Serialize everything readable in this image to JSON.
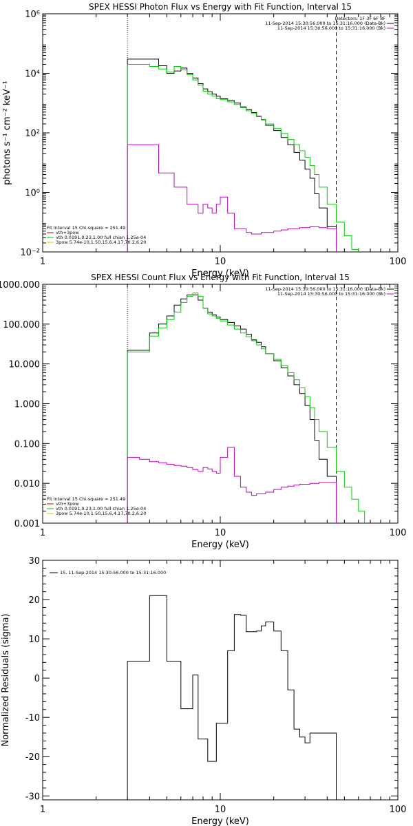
{
  "chart_data": [
    {
      "type": "line",
      "title": "SPEX HESSI Photon Flux vs Energy with Fit Function, Interval 15",
      "xlabel": "Energy (keV)",
      "ylabel": "photons s⁻¹ cm⁻² keV⁻¹",
      "xscale": "log",
      "yscale": "log",
      "xlim": [
        1,
        100
      ],
      "ylim": [
        0.01,
        1000000
      ],
      "x_ticks": [
        "1",
        "10",
        "100"
      ],
      "y_ticks": [
        {
          "value": 0.01,
          "label": "10⁻²"
        },
        {
          "value": 1,
          "label": "10⁰"
        },
        {
          "value": 100,
          "label": "10²"
        },
        {
          "value": 10000,
          "label": "10⁴"
        },
        {
          "value": 1000000,
          "label": "10⁶"
        }
      ],
      "fit_range": [
        3,
        45
      ],
      "legend_top_right": {
        "header": "Detectors: 1F 3F 6F 8F",
        "entries": [
          {
            "text": "11-Sep-2014 15:30:56.000 to 15:31:16.000 (Data-Bk)",
            "color": "#000000"
          },
          {
            "text": "11-Sep-2014 15:30:56.000 to 15:31:16.000 (Bk)",
            "color": "#c000c0"
          }
        ]
      },
      "legend_bottom_left": {
        "header": "Fit Interval 15   Chi-square = 251.49",
        "entries": [
          {
            "text": "vth+3pow",
            "color": "#c00000"
          },
          {
            "text": "vth 0.0191,0.23,1.00  full chian 1.25e-04",
            "color": "#00cc00"
          },
          {
            "text": "3pow 5.74e-10,1.50,15.6,4.17,70.2,6.20",
            "color": "#cccc00"
          }
        ]
      },
      "series": [
        {
          "color": "#000000",
          "edges": [
            3,
            3.5,
            4,
            4.5,
            5,
            5.5,
            6,
            6.5,
            7,
            7.5,
            8,
            8.5,
            9,
            9.5,
            10,
            11,
            12,
            13,
            14,
            15,
            16,
            17,
            18,
            20,
            22,
            24,
            26,
            28,
            30,
            32,
            34,
            36,
            40,
            45
          ],
          "values": [
            30000,
            30000,
            30000,
            18000,
            10000,
            12000,
            15000,
            10000,
            7000,
            4500,
            3000,
            2400,
            2000,
            1700,
            1400,
            1200,
            1000,
            750,
            600,
            480,
            360,
            280,
            180,
            120,
            70,
            40,
            22,
            12,
            6,
            3,
            0.9,
            0.3,
            0.07
          ]
        },
        {
          "color": "#00cc00",
          "edges": [
            3,
            3.5,
            4,
            4.5,
            5,
            5.5,
            6,
            6.5,
            7,
            7.5,
            8,
            8.5,
            9,
            9.5,
            10,
            11,
            12,
            13,
            14,
            15,
            16,
            17,
            18,
            20,
            22,
            24,
            26,
            28,
            30,
            32,
            34,
            36,
            40,
            45,
            50,
            55,
            60
          ],
          "values": [
            20000,
            20000,
            17000,
            14000,
            11000,
            17000,
            13000,
            9000,
            6000,
            4000,
            2500,
            2000,
            1700,
            1400,
            1300,
            1100,
            900,
            700,
            550,
            450,
            350,
            270,
            200,
            140,
            95,
            60,
            40,
            25,
            15,
            8,
            4,
            1.5,
            0.4,
            0.1,
            0.035,
            0.012
          ]
        },
        {
          "color": "#c000c0",
          "edges": [
            3,
            3.5,
            4,
            4.5,
            5,
            5.5,
            6,
            6.5,
            7,
            7.5,
            8,
            8.5,
            9,
            9.5,
            10,
            11,
            12,
            13,
            14,
            15,
            16,
            17,
            18,
            20,
            22,
            24,
            26,
            28,
            30,
            32,
            34,
            36,
            40,
            45
          ],
          "values": [
            40,
            40,
            40,
            4.5,
            4.5,
            1.5,
            1.5,
            0.4,
            0.4,
            0.2,
            0.4,
            0.3,
            0.2,
            0.4,
            0.7,
            0.2,
            0.06,
            0.06,
            0.045,
            0.04,
            0.04,
            0.045,
            0.045,
            0.05,
            0.055,
            0.06,
            0.06,
            0.065,
            0.065,
            0.07,
            0.07,
            0.065,
            0.06
          ]
        }
      ]
    },
    {
      "type": "line",
      "title": "SPEX HESSI Count Flux vs Energy with Fit Function, Interval 15",
      "xlabel": "Energy (keV)",
      "ylabel": "",
      "xscale": "log",
      "yscale": "log",
      "xlim": [
        1,
        100
      ],
      "ylim": [
        0.001,
        1000
      ],
      "x_ticks": [
        "1",
        "10",
        "100"
      ],
      "y_ticks": [
        {
          "value": 0.001,
          "label": "0.001"
        },
        {
          "value": 0.01,
          "label": "0.010"
        },
        {
          "value": 0.1,
          "label": "0.100"
        },
        {
          "value": 1,
          "label": "1.000"
        },
        {
          "value": 10,
          "label": "10.000"
        },
        {
          "value": 100,
          "label": "100.000"
        },
        {
          "value": 1000,
          "label": "1000.000"
        }
      ],
      "fit_range": [
        3,
        45
      ],
      "legend_top_right": {
        "header": "",
        "entries": [
          {
            "text": "11-Sep-2014 15:30:56.000 to 15:31:16.000 (Data-Bk)",
            "color": "#000000"
          },
          {
            "text": "11-Sep-2014 15:30:56.000 to 15:31:16.000 (Bk)",
            "color": "#c000c0"
          }
        ]
      },
      "legend_bottom_left": {
        "header": "Fit Interval 15   Chi-square = 251.49",
        "entries": [
          {
            "text": "vth+3pow",
            "color": "#c00000"
          },
          {
            "text": "vth 0.0191,0.23,1.00  full chian 1.25e-04",
            "color": "#00cc00"
          },
          {
            "text": "3pow 5.74e-10,1.50,15.6,4.17,70.2,6.20",
            "color": "#cccc00"
          }
        ]
      },
      "series": [
        {
          "color": "#000000",
          "edges": [
            3,
            3.5,
            4,
            4.5,
            5,
            5.5,
            6,
            6.5,
            7,
            7.5,
            8,
            8.5,
            9,
            9.5,
            10,
            11,
            12,
            13,
            14,
            15,
            16,
            17,
            18,
            20,
            22,
            24,
            26,
            28,
            30,
            32,
            34,
            36,
            40,
            45
          ],
          "values": [
            22,
            22,
            60,
            100,
            160,
            300,
            430,
            540,
            540,
            400,
            250,
            200,
            170,
            150,
            130,
            110,
            90,
            75,
            55,
            40,
            35,
            27,
            18,
            12,
            8,
            5,
            3,
            1.8,
            0.9,
            0.4,
            0.12,
            0.04,
            0.015
          ]
        },
        {
          "color": "#00cc00",
          "edges": [
            3,
            3.5,
            4,
            4.5,
            5,
            5.5,
            6,
            6.5,
            7,
            7.5,
            8,
            8.5,
            9,
            9.5,
            10,
            11,
            12,
            13,
            14,
            15,
            16,
            17,
            18,
            20,
            22,
            24,
            26,
            28,
            30,
            32,
            34,
            36,
            40,
            45,
            50,
            55,
            60,
            65
          ],
          "values": [
            20,
            20,
            50,
            80,
            130,
            200,
            350,
            500,
            600,
            500,
            250,
            180,
            160,
            140,
            120,
            95,
            75,
            60,
            48,
            38,
            30,
            24,
            18,
            13,
            9,
            6,
            4,
            2.5,
            1.5,
            0.8,
            0.4,
            0.2,
            0.08,
            0.02,
            0.008,
            0.004,
            0.002
          ]
        },
        {
          "color": "#c000c0",
          "edges": [
            3,
            3.5,
            4,
            4.5,
            5,
            5.5,
            6,
            6.5,
            7,
            7.5,
            8,
            8.5,
            9,
            9.5,
            10,
            11,
            12,
            13,
            14,
            15,
            16,
            17,
            18,
            20,
            22,
            24,
            26,
            28,
            30,
            32,
            34,
            36,
            40,
            45
          ],
          "values": [
            0.045,
            0.04,
            0.035,
            0.033,
            0.03,
            0.028,
            0.027,
            0.025,
            0.022,
            0.02,
            0.025,
            0.023,
            0.02,
            0.018,
            0.045,
            0.08,
            0.015,
            0.008,
            0.006,
            0.005,
            0.0055,
            0.0055,
            0.006,
            0.007,
            0.008,
            0.0085,
            0.009,
            0.0095,
            0.0095,
            0.01,
            0.01,
            0.0105,
            0.0105
          ]
        }
      ]
    },
    {
      "type": "line",
      "title": "",
      "xlabel": "Energy (keV)",
      "ylabel": "Normalized Residuals (sigma)",
      "xscale": "log",
      "yscale": "linear",
      "xlim": [
        1,
        100
      ],
      "ylim": [
        -31,
        30
      ],
      "x_ticks": [
        "1",
        "10",
        "100"
      ],
      "y_ticks": [
        {
          "value": 30,
          "label": "30"
        },
        {
          "value": 20,
          "label": "20"
        },
        {
          "value": 10,
          "label": "10"
        },
        {
          "value": 0,
          "label": "0"
        },
        {
          "value": -10,
          "label": "-10"
        },
        {
          "value": -20,
          "label": "-20"
        },
        {
          "value": -30,
          "label": "-30"
        }
      ],
      "legend_top_left": {
        "entries": [
          {
            "text": "15, 11-Sep-2014 15:30:56.000 to 15:31:16.000",
            "color": "#000000"
          }
        ]
      },
      "series": [
        {
          "color": "#000000",
          "edges": [
            3,
            3.5,
            4,
            4.5,
            5,
            5.5,
            6,
            6.5,
            7,
            7.5,
            8,
            8.5,
            9,
            9.5,
            10,
            11,
            12,
            13,
            14,
            15,
            16,
            17,
            18,
            20,
            22,
            24,
            26,
            28,
            30,
            32,
            34,
            36,
            40,
            45
          ],
          "values": [
            4.3,
            4.3,
            21,
            21,
            4.3,
            4.3,
            -7.8,
            -7.8,
            0.8,
            -15.5,
            -15.5,
            -21.2,
            -21.2,
            -11.5,
            -11.5,
            7,
            16.2,
            16,
            11.8,
            11.8,
            12,
            13.3,
            14.3,
            12,
            7,
            -3,
            -13,
            -15,
            -16.5,
            -14,
            -14,
            -14,
            -14
          ]
        }
      ]
    }
  ]
}
